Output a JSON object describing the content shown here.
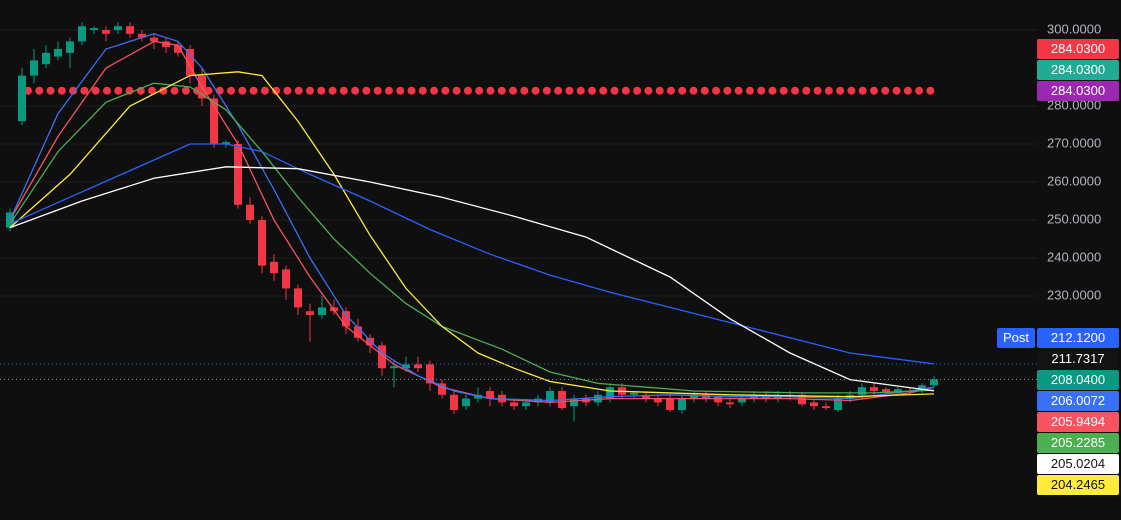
{
  "chart_data": {
    "type": "candlestick",
    "ylim": [
      171.05,
      307.9
    ],
    "yticks": [
      {
        "value": 300,
        "label": "300.0000"
      },
      {
        "value": 280,
        "label": "280.0000"
      },
      {
        "value": 270,
        "label": "270.0000"
      },
      {
        "value": 260,
        "label": "260.0000"
      },
      {
        "value": 250,
        "label": "250.0000"
      },
      {
        "value": 240,
        "label": "240.0000"
      },
      {
        "value": 230,
        "label": "230.0000"
      }
    ],
    "grid": true,
    "up_color": "#089981",
    "down_color": "#f23645",
    "open": [
      248,
      276,
      288,
      291,
      293,
      294,
      297,
      300,
      300,
      300,
      301,
      299,
      298,
      297,
      296,
      295,
      288,
      282,
      270,
      270,
      254,
      250,
      239,
      237,
      232,
      226,
      225,
      227,
      226,
      222,
      219,
      217,
      211,
      211,
      212,
      212,
      207,
      204,
      201,
      203,
      205,
      204,
      202,
      201,
      202,
      202,
      205,
      201,
      203,
      202,
      203,
      206,
      204,
      204,
      203,
      203,
      200,
      203,
      204,
      203.5,
      202,
      202,
      203,
      204,
      203,
      204,
      204,
      202,
      201,
      200,
      203,
      204,
      206,
      205.5,
      204.5,
      205,
      205,
      206.5
    ],
    "high": [
      253,
      290,
      295,
      296,
      297,
      298,
      302,
      301,
      301,
      302,
      302,
      300,
      299,
      298,
      297,
      296,
      290,
      283,
      271,
      271,
      256,
      251,
      241,
      238,
      233,
      228,
      230,
      229,
      227,
      224,
      220,
      218,
      213,
      214,
      214,
      213,
      208,
      205,
      204,
      206,
      206,
      205,
      203,
      203,
      204,
      206,
      206,
      204,
      204,
      205,
      207,
      207,
      205,
      205,
      204,
      204,
      204,
      205,
      205,
      204,
      203,
      204,
      205,
      205,
      205,
      205,
      204.5,
      203,
      202,
      204,
      205,
      207,
      207,
      206,
      206,
      206,
      207,
      209
    ],
    "low": [
      247,
      275,
      286,
      290,
      292,
      290,
      296,
      299,
      297,
      299,
      298,
      297,
      295,
      294,
      293,
      286,
      280,
      269,
      269,
      253,
      249,
      236,
      234,
      229,
      225,
      218,
      224,
      225,
      220,
      218,
      215,
      209,
      206,
      210,
      210,
      205,
      203,
      199,
      200,
      202,
      201,
      201,
      200,
      200,
      201,
      201,
      200,
      197,
      201,
      201,
      202,
      203,
      203,
      202,
      201,
      199.5,
      199,
      202,
      202,
      201,
      200.5,
      201,
      202,
      202,
      202,
      202.5,
      201,
      200,
      200,
      199.5,
      202,
      203,
      204,
      204,
      204,
      204,
      204.5,
      206
    ],
    "close": [
      252,
      288,
      292,
      294,
      295,
      297,
      301,
      300.5,
      299,
      301,
      299,
      298,
      297,
      295.5,
      294,
      288,
      282,
      270,
      270.5,
      254,
      250,
      238,
      236,
      232,
      227,
      225,
      227,
      226,
      222,
      219,
      217,
      211,
      211.5,
      212,
      211,
      207,
      204,
      200,
      203,
      204,
      203,
      202,
      201,
      202,
      203,
      205,
      200.5,
      203,
      202,
      204,
      206,
      204,
      204.5,
      203,
      202,
      200,
      203,
      204,
      203,
      202,
      201.5,
      203,
      204,
      203,
      204,
      203.5,
      201.5,
      201,
      200.5,
      203,
      204,
      206,
      205,
      204.5,
      205.5,
      204.8,
      206.5,
      208.04
    ],
    "lines": [
      {
        "color": "#f7525f",
        "x": [
          0,
          4,
          8,
          12,
          14,
          16,
          19,
          22,
          25,
          28,
          32,
          36,
          40,
          45,
          50,
          55,
          60,
          65,
          70,
          75,
          77
        ],
        "values": [
          250,
          272,
          290,
          297,
          296,
          285,
          270,
          250,
          235,
          222,
          212,
          206,
          203,
          202,
          203,
          203,
          203,
          203,
          202.5,
          204.5,
          205.9494
        ]
      },
      {
        "color": "#3a6ff7",
        "x": [
          0,
          4,
          8,
          12,
          14,
          16,
          19,
          22,
          25,
          28,
          31,
          34,
          37,
          40,
          45,
          50,
          55,
          60,
          65,
          70,
          75,
          77
        ],
        "values": [
          250,
          278,
          295,
          299,
          297,
          290,
          275,
          258,
          240,
          225,
          215,
          209,
          205,
          203,
          202.5,
          203.5,
          204,
          203.5,
          203.5,
          203,
          205,
          206.0072
        ]
      },
      {
        "color": "#4caf50",
        "x": [
          0,
          4,
          8,
          12,
          15,
          18,
          21,
          24,
          27,
          30,
          33,
          36,
          41,
          45,
          49,
          57,
          66,
          72,
          77
        ],
        "values": [
          249,
          268,
          281,
          286,
          285,
          279,
          268,
          256,
          245,
          236,
          228,
          222,
          216,
          210,
          207,
          205,
          204.5,
          204.5,
          205.2285
        ]
      },
      {
        "color": "#ffeb3b",
        "x": [
          0,
          5,
          10,
          15,
          19,
          21,
          24,
          27,
          30,
          33,
          36,
          39,
          42,
          45,
          50,
          60,
          70,
          77
        ],
        "values": [
          248,
          262,
          280,
          288,
          289,
          288,
          276,
          262,
          246,
          232,
          222,
          215,
          211,
          207.5,
          205,
          204,
          203.5,
          204.2465
        ]
      },
      {
        "color": "#2962ff",
        "x": [
          0,
          5,
          10,
          15,
          18,
          21,
          25,
          30,
          35,
          40,
          45,
          50,
          55,
          60,
          65,
          70,
          77
        ],
        "values": [
          249,
          256,
          263,
          270,
          270,
          268,
          262,
          255,
          247.5,
          241,
          235.5,
          231,
          227,
          223,
          219,
          215,
          212.12
        ]
      },
      {
        "color": "#ffffff",
        "x": [
          0,
          6,
          12,
          18,
          24,
          30,
          36,
          42,
          48,
          50,
          55,
          60,
          65,
          70,
          77
        ],
        "values": [
          248,
          255,
          261,
          264,
          263.5,
          260,
          256,
          251,
          245.5,
          242.5,
          235,
          224,
          215,
          208,
          205.0204
        ]
      }
    ],
    "stop_level": 284.03,
    "stop_color": "#f23645",
    "session_label": "Post",
    "session_color": "#2962ff",
    "price_tags": [
      {
        "label": "284.0300",
        "color": "#f23645",
        "text_color": "#ffffff"
      },
      {
        "label": "284.0300",
        "color": "#22ab94",
        "text_color": "#ffffff"
      },
      {
        "label": "284.0300",
        "color": "#9c27b0",
        "text_color": "#ffffff"
      },
      {
        "label": "212.1200",
        "color": "#2962ff",
        "text_color": "#ffffff"
      },
      {
        "label": "211.7317",
        "color": "#131313",
        "text_color": "#ffffff"
      },
      {
        "label": "208.0400",
        "color": "#089981",
        "text_color": "#ffffff"
      },
      {
        "label": "206.0072",
        "color": "#3a6ff7",
        "text_color": "#ffffff"
      },
      {
        "label": "205.9494",
        "color": "#f7525f",
        "text_color": "#ffffff"
      },
      {
        "label": "205.2285",
        "color": "#4caf50",
        "text_color": "#ffffff"
      },
      {
        "label": "205.0204",
        "color": "#ffffff",
        "text_color": "#131313"
      },
      {
        "label": "204.2465",
        "color": "#ffeb3b",
        "text_color": "#131313"
      }
    ]
  }
}
